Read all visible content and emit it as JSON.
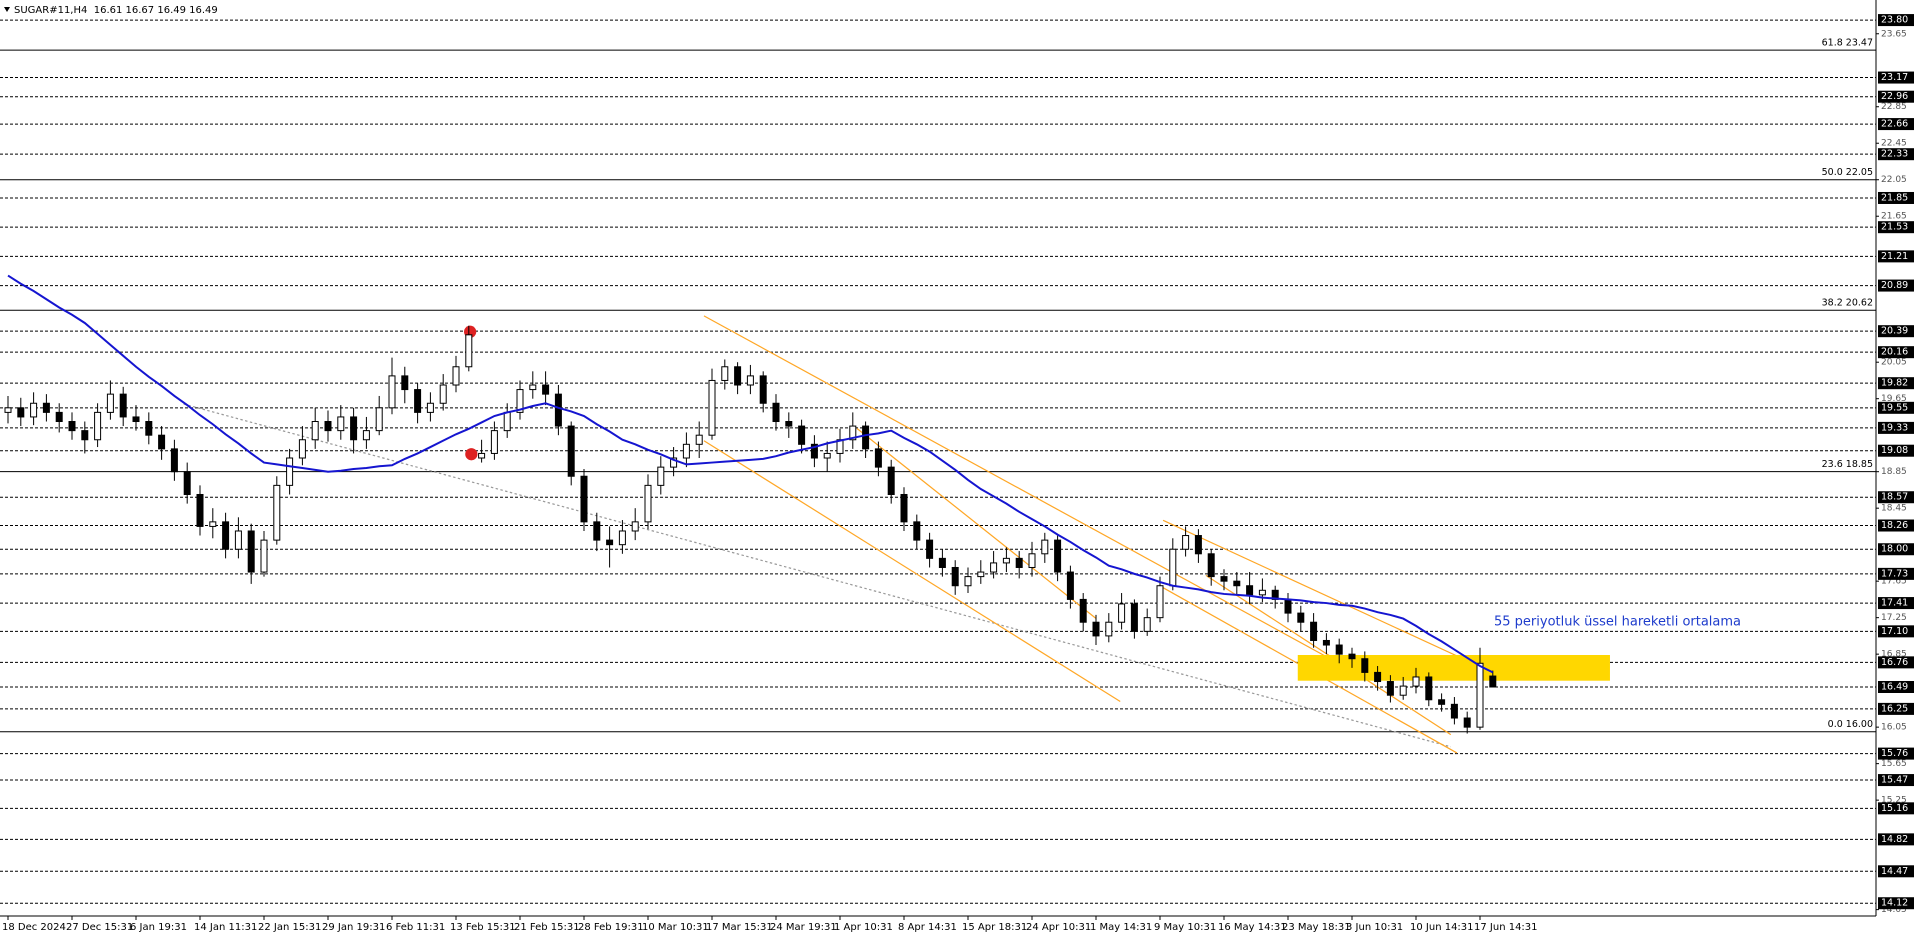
{
  "chart_data": {
    "type": "candlestick",
    "header": "SUGAR#11,H4  16.61 16.67 16.49 16.49",
    "annotation": "55 periyotluk üssel hareketli ortalama",
    "ylim": [
      13.98,
      24.02
    ],
    "yticks": [
      23.65,
      22.85,
      22.45,
      22.05,
      21.65,
      20.05,
      19.65,
      18.85,
      18.45,
      17.65,
      17.25,
      16.85,
      16.05,
      15.65,
      15.25,
      14.05
    ],
    "levels": [
      {
        "value": 23.8,
        "label": "23.80"
      },
      23.17,
      22.96,
      22.66,
      22.33,
      21.85,
      21.53,
      21.21,
      20.89,
      20.39,
      20.16,
      19.82,
      19.55,
      19.33,
      19.08,
      18.57,
      18.26,
      {
        "value": 18,
        "label": "18.00"
      },
      17.73,
      17.41,
      {
        "value": 17.1,
        "label": "17.10"
      },
      16.76,
      16.49,
      16.25,
      15.76,
      15.47,
      15.16,
      14.82,
      14.47,
      14.12
    ],
    "fib_levels": [
      {
        "value": 23.47,
        "label": "61.8 23.47"
      },
      {
        "value": 22.05,
        "label": "50.0 22.05"
      },
      {
        "value": 20.62,
        "label": "38.2 20.62"
      },
      {
        "value": 18.85,
        "label": "23.6 18.85"
      },
      {
        "value": 16.0,
        "label": "0.0 16.00"
      }
    ],
    "up_color": "#ffffff",
    "down_color": "#000000",
    "wick_color": "#000000",
    "categories": [
      "18 Dec 2024",
      null,
      null,
      null,
      null,
      "27 Dec 15:31",
      null,
      null,
      null,
      null,
      "6 Jan 19:31",
      null,
      null,
      null,
      null,
      "14 Jan 11:31",
      null,
      null,
      null,
      null,
      "22 Jan 15:31",
      null,
      null,
      null,
      null,
      "29 Jan 19:31",
      null,
      null,
      null,
      null,
      "6 Feb 11:31",
      null,
      null,
      null,
      null,
      "13 Feb 15:31",
      null,
      null,
      null,
      null,
      "21 Feb 15:31",
      null,
      null,
      null,
      null,
      "28 Feb 19:31",
      null,
      null,
      null,
      null,
      "10 Mar 10:31",
      null,
      null,
      null,
      null,
      "17 Mar 15:31",
      null,
      null,
      null,
      null,
      "24 Mar 19:31",
      null,
      null,
      null,
      null,
      "1 Apr 10:31",
      null,
      null,
      null,
      null,
      "8 Apr 14:31",
      null,
      null,
      null,
      null,
      "15 Apr 18:31",
      null,
      null,
      null,
      null,
      "24 Apr 10:31",
      null,
      null,
      null,
      null,
      "1 May 14:31",
      null,
      null,
      null,
      null,
      "9 May 10:31",
      null,
      null,
      null,
      null,
      "16 May 14:31",
      null,
      null,
      null,
      null,
      "23 May 18:31",
      null,
      null,
      null,
      null,
      "3 Jun 10:31",
      null,
      null,
      null,
      null,
      "10 Jun 14:31",
      null,
      null,
      null,
      null,
      "17 Jun 14:31",
      null
    ],
    "open": [
      19.5,
      19.55,
      19.45,
      19.6,
      19.5,
      19.4,
      19.3,
      19.2,
      19.5,
      19.7,
      19.45,
      19.4,
      19.25,
      19.1,
      18.85,
      18.6,
      18.25,
      18.3,
      18.0,
      18.2,
      17.75,
      18.1,
      18.7,
      19.0,
      19.2,
      19.4,
      19.3,
      19.45,
      19.2,
      19.3,
      19.55,
      19.9,
      19.75,
      19.5,
      19.6,
      19.8,
      20.0,
      19.0,
      19.05,
      19.3,
      19.5,
      19.75,
      19.8,
      19.7,
      19.35,
      18.8,
      18.3,
      18.1,
      18.05,
      18.2,
      18.3,
      18.7,
      18.9,
      19.0,
      19.15,
      19.25,
      19.85,
      20.0,
      19.8,
      19.9,
      19.6,
      19.4,
      19.35,
      19.15,
      19.0,
      19.05,
      19.2,
      19.35,
      19.1,
      18.9,
      18.6,
      18.3,
      18.1,
      17.9,
      17.8,
      17.6,
      17.7,
      17.75,
      17.85,
      17.9,
      17.8,
      17.95,
      18.1,
      17.75,
      17.45,
      17.2,
      17.05,
      17.2,
      17.4,
      17.1,
      17.25,
      17.6,
      18.0,
      18.15,
      17.95,
      17.7,
      17.65,
      17.6,
      17.5,
      17.55,
      17.45,
      17.3,
      17.2,
      17.0,
      16.95,
      16.85,
      16.8,
      16.65,
      16.55,
      16.4,
      16.5,
      16.6,
      16.35,
      16.3,
      16.15,
      16.05,
      16.61
    ],
    "high": [
      19.68,
      19.66,
      19.72,
      19.7,
      19.6,
      19.5,
      19.4,
      19.6,
      19.85,
      19.78,
      19.58,
      19.5,
      19.35,
      19.2,
      18.95,
      18.7,
      18.45,
      18.4,
      18.35,
      18.28,
      18.2,
      18.8,
      19.1,
      19.35,
      19.55,
      19.52,
      19.58,
      19.55,
      19.45,
      19.68,
      20.1,
      20.0,
      19.82,
      19.72,
      19.92,
      20.12,
      20.45,
      19.2,
      19.4,
      19.6,
      19.85,
      19.95,
      19.95,
      19.8,
      19.4,
      18.88,
      18.4,
      18.25,
      18.32,
      18.45,
      18.82,
      19.02,
      19.12,
      19.28,
      19.4,
      19.98,
      20.08,
      20.05,
      20.02,
      19.95,
      19.7,
      19.5,
      19.42,
      19.25,
      19.18,
      19.32,
      19.5,
      19.4,
      19.18,
      18.98,
      18.68,
      18.38,
      18.18,
      18.0,
      17.88,
      17.8,
      17.88,
      17.98,
      18.02,
      17.98,
      18.08,
      18.18,
      18.15,
      17.82,
      17.52,
      17.28,
      17.3,
      17.52,
      17.45,
      17.35,
      17.7,
      18.12,
      18.25,
      18.22,
      18.0,
      17.78,
      17.75,
      17.75,
      17.68,
      17.6,
      17.52,
      17.38,
      17.3,
      17.08,
      17.02,
      16.92,
      16.88,
      16.72,
      16.62,
      16.6,
      16.7,
      16.65,
      16.42,
      16.38,
      16.22,
      16.92,
      16.67
    ],
    "low": [
      19.38,
      19.35,
      19.36,
      19.4,
      19.28,
      19.2,
      19.05,
      19.12,
      19.42,
      19.35,
      19.3,
      19.15,
      18.98,
      18.75,
      18.5,
      18.15,
      18.12,
      17.9,
      17.9,
      17.62,
      17.7,
      18.05,
      18.6,
      18.92,
      19.1,
      19.18,
      19.2,
      19.05,
      19.1,
      19.25,
      19.48,
      19.6,
      19.38,
      19.4,
      19.52,
      19.72,
      19.95,
      18.95,
      18.98,
      19.22,
      19.42,
      19.65,
      19.58,
      19.25,
      18.7,
      18.2,
      17.98,
      17.8,
      17.95,
      18.1,
      18.22,
      18.6,
      18.8,
      18.9,
      19.0,
      19.2,
      19.75,
      19.7,
      19.7,
      19.5,
      19.3,
      19.22,
      19.05,
      18.9,
      18.85,
      18.95,
      19.1,
      19.0,
      18.8,
      18.5,
      18.2,
      18.0,
      17.8,
      17.7,
      17.5,
      17.52,
      17.62,
      17.68,
      17.75,
      17.68,
      17.7,
      17.85,
      17.65,
      17.35,
      17.1,
      16.95,
      16.98,
      17.12,
      17.02,
      17.05,
      17.2,
      17.55,
      17.92,
      17.85,
      17.6,
      17.55,
      17.5,
      17.4,
      17.42,
      17.35,
      17.2,
      17.1,
      16.92,
      16.85,
      16.75,
      16.7,
      16.55,
      16.45,
      16.32,
      16.35,
      16.42,
      16.28,
      16.22,
      16.08,
      15.98,
      16.02,
      16.49
    ],
    "close": [
      19.55,
      19.45,
      19.6,
      19.5,
      19.4,
      19.3,
      19.2,
      19.5,
      19.7,
      19.45,
      19.4,
      19.25,
      19.1,
      18.85,
      18.6,
      18.25,
      18.3,
      18.0,
      18.2,
      17.75,
      18.1,
      18.7,
      19.0,
      19.2,
      19.4,
      19.3,
      19.45,
      19.2,
      19.3,
      19.55,
      19.9,
      19.75,
      19.5,
      19.6,
      19.8,
      20.0,
      20.35,
      19.05,
      19.3,
      19.5,
      19.75,
      19.8,
      19.7,
      19.35,
      18.8,
      18.3,
      18.1,
      18.05,
      18.2,
      18.3,
      18.7,
      18.9,
      19.0,
      19.15,
      19.25,
      19.85,
      20.0,
      19.8,
      19.9,
      19.6,
      19.4,
      19.35,
      19.15,
      19.0,
      19.05,
      19.2,
      19.35,
      19.1,
      18.9,
      18.6,
      18.3,
      18.1,
      17.9,
      17.8,
      17.6,
      17.7,
      17.75,
      17.85,
      17.9,
      17.8,
      17.95,
      18.1,
      17.75,
      17.45,
      17.2,
      17.05,
      17.2,
      17.4,
      17.1,
      17.25,
      17.6,
      18.0,
      18.15,
      17.95,
      17.7,
      17.65,
      17.6,
      17.5,
      17.55,
      17.45,
      17.3,
      17.2,
      17.0,
      16.95,
      16.85,
      16.8,
      16.65,
      16.55,
      16.4,
      16.5,
      16.6,
      16.35,
      16.3,
      16.15,
      16.05,
      16.75,
      16.49
    ],
    "ema": {
      "color": "#1515d0",
      "values": [
        21.0,
        20.91,
        20.83,
        20.74,
        20.65,
        20.57,
        20.48,
        20.36,
        20.24,
        20.12,
        20.0,
        19.89,
        19.79,
        19.68,
        19.58,
        19.47,
        19.37,
        19.26,
        19.16,
        19.05,
        18.95,
        18.93,
        18.91,
        18.89,
        18.87,
        18.85,
        18.86,
        18.88,
        18.89,
        18.91,
        18.92,
        18.99,
        19.05,
        19.12,
        19.19,
        19.26,
        19.32,
        19.39,
        19.46,
        19.5,
        19.53,
        19.57,
        19.6,
        19.55,
        19.51,
        19.46,
        19.37,
        19.29,
        19.2,
        19.15,
        19.09,
        19.04,
        18.98,
        18.93,
        18.94,
        18.95,
        18.96,
        18.97,
        18.98,
        18.99,
        19.02,
        19.06,
        19.09,
        19.12,
        19.16,
        19.19,
        19.22,
        19.25,
        19.27,
        19.3,
        19.22,
        19.15,
        19.07,
        18.97,
        18.87,
        18.76,
        18.66,
        18.58,
        18.5,
        18.41,
        18.33,
        18.25,
        18.16,
        18.08,
        17.99,
        17.91,
        17.82,
        17.78,
        17.73,
        17.69,
        17.64,
        17.6,
        17.58,
        17.56,
        17.53,
        17.51,
        17.5,
        17.49,
        17.47,
        17.46,
        17.45,
        17.44,
        17.42,
        17.41,
        17.39,
        17.38,
        17.35,
        17.31,
        17.28,
        17.24,
        17.16,
        17.07,
        16.99,
        16.9,
        16.81,
        16.72,
        16.65
      ]
    }
  }
}
